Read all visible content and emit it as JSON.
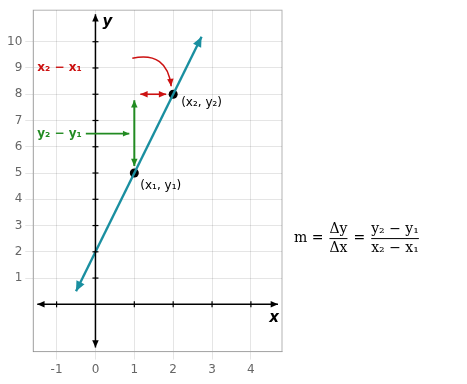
{
  "chart_data": {
    "type": "scatter",
    "xlabel": "x",
    "ylabel": "y",
    "xlim": [
      -1.6,
      4.8
    ],
    "ylim": [
      -1.8,
      11.2
    ],
    "xticks": [
      -1,
      0,
      1,
      2,
      3,
      4
    ],
    "yticks": [
      1,
      2,
      3,
      4,
      5,
      6,
      7,
      8,
      9,
      10
    ],
    "grid": true,
    "series": [
      {
        "type": "line",
        "color": "#1a8fa0",
        "x": [
          -0.5,
          2.73
        ],
        "values": [
          0.5,
          10.19
        ]
      },
      {
        "type": "scatter",
        "color": "black",
        "x": [
          1,
          2
        ],
        "values": [
          5,
          8
        ],
        "labels": [
          "(x₁, y₁)",
          "(x₂, y₂)"
        ]
      }
    ],
    "annotations": [
      {
        "text": "x₂ − x₁",
        "color": "#cc1111"
      },
      {
        "text": "y₂ − y₁",
        "color": "#228B22"
      }
    ],
    "formula": [
      "m =",
      {
        "num": "Δy",
        "den": "Δx"
      },
      "=",
      {
        "num": "y₂ − y₁",
        "den": "x₂ − x₁"
      }
    ]
  }
}
